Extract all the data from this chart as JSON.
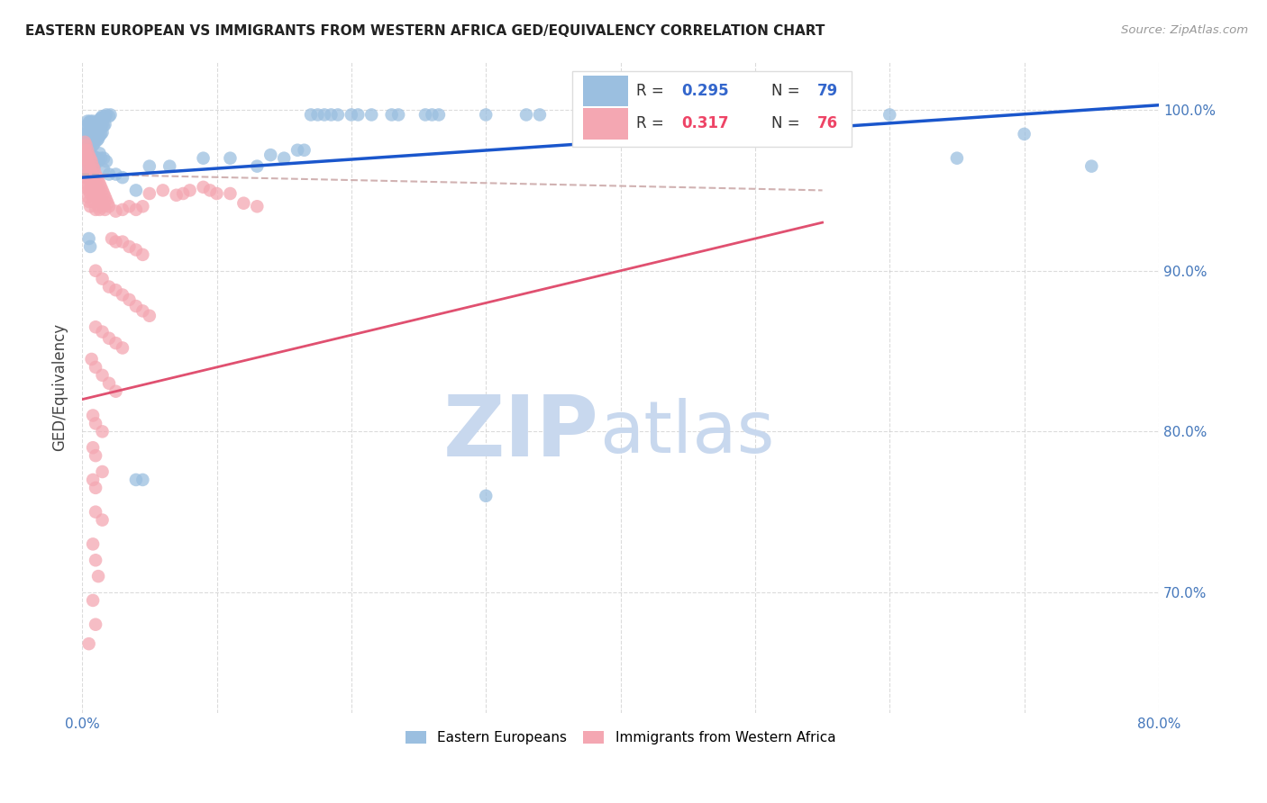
{
  "title": "EASTERN EUROPEAN VS IMMIGRANTS FROM WESTERN AFRICA GED/EQUIVALENCY CORRELATION CHART",
  "source": "Source: ZipAtlas.com",
  "ylabel": "GED/Equivalency",
  "ytick_labels": [
    "100.0%",
    "90.0%",
    "80.0%",
    "70.0%"
  ],
  "ytick_values": [
    1.0,
    0.9,
    0.8,
    0.7
  ],
  "xlim": [
    0.0,
    0.8
  ],
  "ylim": [
    0.625,
    1.03
  ],
  "legend_r1": "0.295",
  "legend_n1": "79",
  "legend_r2": "0.317",
  "legend_n2": "76",
  "blue_color": "#9BBFE0",
  "pink_color": "#F4A7B2",
  "line_blue": "#1A56CC",
  "line_pink": "#E05070",
  "line_gray": "#CCAAAA",
  "bg_color": "#FFFFFF",
  "watermark_zip": "ZIP",
  "watermark_atlas": "atlas",
  "blue_trend_x": [
    0.0,
    0.8
  ],
  "blue_trend_y": [
    0.958,
    1.003
  ],
  "pink_trend_x": [
    0.0,
    0.55
  ],
  "pink_trend_y": [
    0.82,
    0.93
  ],
  "gray_trend_x": [
    0.0,
    0.55
  ],
  "gray_trend_y": [
    0.96,
    0.95
  ],
  "blue_scatter": [
    [
      0.002,
      0.99
    ],
    [
      0.002,
      0.985
    ],
    [
      0.003,
      0.988
    ],
    [
      0.004,
      0.993
    ],
    [
      0.004,
      0.985
    ],
    [
      0.004,
      0.978
    ],
    [
      0.005,
      0.992
    ],
    [
      0.005,
      0.986
    ],
    [
      0.005,
      0.98
    ],
    [
      0.005,
      0.975
    ],
    [
      0.006,
      0.993
    ],
    [
      0.006,
      0.987
    ],
    [
      0.006,
      0.982
    ],
    [
      0.006,
      0.976
    ],
    [
      0.007,
      0.992
    ],
    [
      0.007,
      0.987
    ],
    [
      0.007,
      0.982
    ],
    [
      0.008,
      0.993
    ],
    [
      0.008,
      0.988
    ],
    [
      0.008,
      0.983
    ],
    [
      0.008,
      0.978
    ],
    [
      0.009,
      0.99
    ],
    [
      0.009,
      0.985
    ],
    [
      0.009,
      0.979
    ],
    [
      0.01,
      0.992
    ],
    [
      0.01,
      0.987
    ],
    [
      0.01,
      0.982
    ],
    [
      0.011,
      0.991
    ],
    [
      0.011,
      0.986
    ],
    [
      0.011,
      0.981
    ],
    [
      0.012,
      0.993
    ],
    [
      0.012,
      0.988
    ],
    [
      0.012,
      0.982
    ],
    [
      0.013,
      0.994
    ],
    [
      0.013,
      0.989
    ],
    [
      0.013,
      0.984
    ],
    [
      0.014,
      0.995
    ],
    [
      0.014,
      0.99
    ],
    [
      0.014,
      0.985
    ],
    [
      0.015,
      0.996
    ],
    [
      0.015,
      0.991
    ],
    [
      0.015,
      0.986
    ],
    [
      0.016,
      0.995
    ],
    [
      0.016,
      0.99
    ],
    [
      0.017,
      0.996
    ],
    [
      0.017,
      0.991
    ],
    [
      0.018,
      0.997
    ],
    [
      0.02,
      0.996
    ],
    [
      0.021,
      0.997
    ],
    [
      0.003,
      0.97
    ],
    [
      0.003,
      0.963
    ],
    [
      0.006,
      0.967
    ],
    [
      0.007,
      0.972
    ],
    [
      0.007,
      0.965
    ],
    [
      0.008,
      0.968
    ],
    [
      0.009,
      0.971
    ],
    [
      0.009,
      0.965
    ],
    [
      0.01,
      0.968
    ],
    [
      0.011,
      0.97
    ],
    [
      0.012,
      0.968
    ],
    [
      0.013,
      0.973
    ],
    [
      0.014,
      0.97
    ],
    [
      0.016,
      0.97
    ],
    [
      0.016,
      0.963
    ],
    [
      0.018,
      0.968
    ],
    [
      0.02,
      0.96
    ],
    [
      0.005,
      0.92
    ],
    [
      0.006,
      0.915
    ],
    [
      0.025,
      0.96
    ],
    [
      0.03,
      0.958
    ],
    [
      0.04,
      0.95
    ],
    [
      0.05,
      0.965
    ],
    [
      0.065,
      0.965
    ],
    [
      0.09,
      0.97
    ],
    [
      0.11,
      0.97
    ],
    [
      0.13,
      0.965
    ],
    [
      0.14,
      0.972
    ],
    [
      0.15,
      0.97
    ],
    [
      0.16,
      0.975
    ],
    [
      0.165,
      0.975
    ],
    [
      0.17,
      0.997
    ],
    [
      0.175,
      0.997
    ],
    [
      0.18,
      0.997
    ],
    [
      0.185,
      0.997
    ],
    [
      0.19,
      0.997
    ],
    [
      0.2,
      0.997
    ],
    [
      0.205,
      0.997
    ],
    [
      0.215,
      0.997
    ],
    [
      0.23,
      0.997
    ],
    [
      0.235,
      0.997
    ],
    [
      0.255,
      0.997
    ],
    [
      0.26,
      0.997
    ],
    [
      0.265,
      0.997
    ],
    [
      0.3,
      0.997
    ],
    [
      0.33,
      0.997
    ],
    [
      0.34,
      0.997
    ],
    [
      0.38,
      0.997
    ],
    [
      0.5,
      0.99
    ],
    [
      0.55,
      0.995
    ],
    [
      0.6,
      0.997
    ],
    [
      0.65,
      0.97
    ],
    [
      0.7,
      0.985
    ],
    [
      0.75,
      0.965
    ],
    [
      0.04,
      0.77
    ],
    [
      0.045,
      0.77
    ],
    [
      0.3,
      0.76
    ]
  ],
  "pink_scatter": [
    [
      0.002,
      0.98
    ],
    [
      0.002,
      0.975
    ],
    [
      0.002,
      0.97
    ],
    [
      0.003,
      0.978
    ],
    [
      0.003,
      0.972
    ],
    [
      0.003,
      0.965
    ],
    [
      0.003,
      0.958
    ],
    [
      0.003,
      0.952
    ],
    [
      0.004,
      0.975
    ],
    [
      0.004,
      0.968
    ],
    [
      0.004,
      0.96
    ],
    [
      0.004,
      0.953
    ],
    [
      0.004,
      0.946
    ],
    [
      0.005,
      0.972
    ],
    [
      0.005,
      0.965
    ],
    [
      0.005,
      0.957
    ],
    [
      0.005,
      0.95
    ],
    [
      0.005,
      0.943
    ],
    [
      0.006,
      0.97
    ],
    [
      0.006,
      0.963
    ],
    [
      0.006,
      0.956
    ],
    [
      0.006,
      0.948
    ],
    [
      0.006,
      0.94
    ],
    [
      0.007,
      0.968
    ],
    [
      0.007,
      0.96
    ],
    [
      0.007,
      0.953
    ],
    [
      0.008,
      0.965
    ],
    [
      0.008,
      0.958
    ],
    [
      0.008,
      0.951
    ],
    [
      0.008,
      0.943
    ],
    [
      0.009,
      0.963
    ],
    [
      0.009,
      0.956
    ],
    [
      0.009,
      0.948
    ],
    [
      0.01,
      0.96
    ],
    [
      0.01,
      0.953
    ],
    [
      0.01,
      0.946
    ],
    [
      0.01,
      0.938
    ],
    [
      0.011,
      0.958
    ],
    [
      0.011,
      0.95
    ],
    [
      0.012,
      0.956
    ],
    [
      0.012,
      0.948
    ],
    [
      0.012,
      0.94
    ],
    [
      0.013,
      0.954
    ],
    [
      0.013,
      0.946
    ],
    [
      0.013,
      0.938
    ],
    [
      0.014,
      0.952
    ],
    [
      0.014,
      0.944
    ],
    [
      0.015,
      0.95
    ],
    [
      0.015,
      0.942
    ],
    [
      0.016,
      0.948
    ],
    [
      0.016,
      0.94
    ],
    [
      0.017,
      0.946
    ],
    [
      0.017,
      0.938
    ],
    [
      0.018,
      0.944
    ],
    [
      0.019,
      0.942
    ],
    [
      0.02,
      0.94
    ],
    [
      0.025,
      0.937
    ],
    [
      0.03,
      0.938
    ],
    [
      0.035,
      0.94
    ],
    [
      0.04,
      0.938
    ],
    [
      0.045,
      0.94
    ],
    [
      0.05,
      0.948
    ],
    [
      0.06,
      0.95
    ],
    [
      0.07,
      0.947
    ],
    [
      0.075,
      0.948
    ],
    [
      0.08,
      0.95
    ],
    [
      0.09,
      0.952
    ],
    [
      0.095,
      0.95
    ],
    [
      0.1,
      0.948
    ],
    [
      0.11,
      0.948
    ],
    [
      0.12,
      0.942
    ],
    [
      0.13,
      0.94
    ],
    [
      0.022,
      0.92
    ],
    [
      0.025,
      0.918
    ],
    [
      0.03,
      0.918
    ],
    [
      0.035,
      0.915
    ],
    [
      0.04,
      0.913
    ],
    [
      0.045,
      0.91
    ],
    [
      0.01,
      0.9
    ],
    [
      0.015,
      0.895
    ],
    [
      0.02,
      0.89
    ],
    [
      0.025,
      0.888
    ],
    [
      0.03,
      0.885
    ],
    [
      0.035,
      0.882
    ],
    [
      0.04,
      0.878
    ],
    [
      0.045,
      0.875
    ],
    [
      0.05,
      0.872
    ],
    [
      0.01,
      0.865
    ],
    [
      0.015,
      0.862
    ],
    [
      0.02,
      0.858
    ],
    [
      0.025,
      0.855
    ],
    [
      0.03,
      0.852
    ],
    [
      0.007,
      0.845
    ],
    [
      0.01,
      0.84
    ],
    [
      0.015,
      0.835
    ],
    [
      0.02,
      0.83
    ],
    [
      0.025,
      0.825
    ],
    [
      0.008,
      0.81
    ],
    [
      0.01,
      0.805
    ],
    [
      0.015,
      0.8
    ],
    [
      0.008,
      0.79
    ],
    [
      0.01,
      0.785
    ],
    [
      0.015,
      0.775
    ],
    [
      0.008,
      0.77
    ],
    [
      0.01,
      0.765
    ],
    [
      0.01,
      0.75
    ],
    [
      0.015,
      0.745
    ],
    [
      0.008,
      0.73
    ],
    [
      0.01,
      0.72
    ],
    [
      0.012,
      0.71
    ],
    [
      0.008,
      0.695
    ],
    [
      0.01,
      0.68
    ],
    [
      0.005,
      0.668
    ]
  ]
}
